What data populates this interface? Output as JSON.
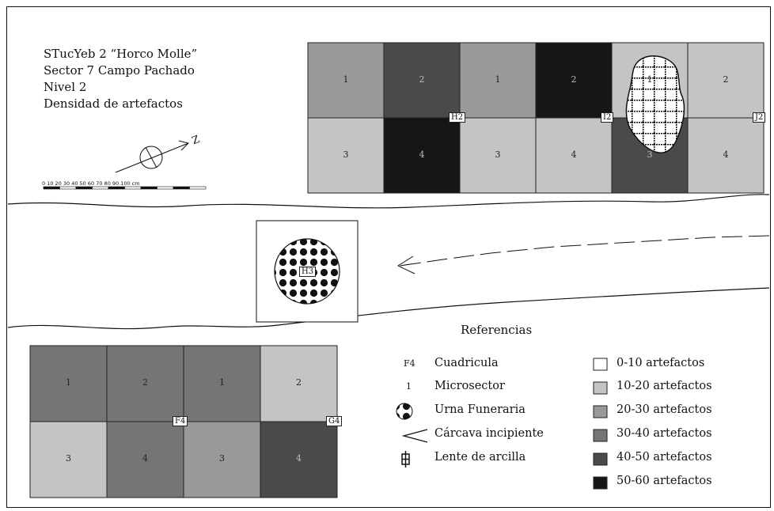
{
  "title_block": {
    "line1": "STucYeb 2 “Horco Molle”",
    "line2": "Sector 7 Campo Pachado",
    "line3": "Nivel 2",
    "line4": "Densidad de artefactos",
    "north_label": "Z",
    "scale_text": "0  10  20  30  40  50  60  70  80  90  100 cm"
  },
  "grid_top": {
    "squares": [
      {
        "label": "H2",
        "microsectors": [
          {
            "n": "1",
            "density": "20-30"
          },
          {
            "n": "2",
            "density": "40-50"
          },
          {
            "n": "3",
            "density": "10-20"
          },
          {
            "n": "4",
            "density": "50-60"
          }
        ]
      },
      {
        "label": "I2",
        "microsectors": [
          {
            "n": "1",
            "density": "20-30"
          },
          {
            "n": "2",
            "density": "50-60"
          },
          {
            "n": "3",
            "density": "10-20"
          },
          {
            "n": "4",
            "density": "10-20"
          }
        ]
      },
      {
        "label": "J2",
        "microsectors": [
          {
            "n": "1",
            "density": "10-20"
          },
          {
            "n": "2",
            "density": "10-20"
          },
          {
            "n": "3",
            "density": "40-50"
          },
          {
            "n": "4",
            "density": "10-20"
          }
        ]
      }
    ]
  },
  "grid_bottom": {
    "squares": [
      {
        "label": "F4",
        "microsectors": [
          {
            "n": "1",
            "density": "30-40"
          },
          {
            "n": "2",
            "density": "30-40"
          },
          {
            "n": "3",
            "density": "10-20"
          },
          {
            "n": "4",
            "density": "30-40"
          }
        ]
      },
      {
        "label": "G4",
        "microsectors": [
          {
            "n": "1",
            "density": "30-40"
          },
          {
            "n": "2",
            "density": "10-20"
          },
          {
            "n": "3",
            "density": "20-30"
          },
          {
            "n": "4",
            "density": "40-50"
          }
        ]
      }
    ]
  },
  "isolated_square": {
    "label": "H3"
  },
  "colors": {
    "0-10": "#ffffff",
    "10-20": "#c4c4c4",
    "20-30": "#999999",
    "30-40": "#757575",
    "40-50": "#4a4a4a",
    "50-60": "#161616"
  },
  "legend": {
    "title": "Referencias",
    "symbols": [
      {
        "icon": "F4",
        "label": "Cuadricula"
      },
      {
        "icon": "1",
        "label": "Microsector"
      },
      {
        "icon": "urn-icon",
        "label": "Urna Funeraria"
      },
      {
        "icon": "arrow-icon",
        "label": "Cárcava incipiente"
      },
      {
        "icon": "clay-lens-icon",
        "label": "Lente de arcilla"
      }
    ],
    "density": [
      {
        "range": "0-10",
        "label": "0-10   artefactos"
      },
      {
        "range": "10-20",
        "label": "10-20 artefactos"
      },
      {
        "range": "20-30",
        "label": "20-30 artefactos"
      },
      {
        "range": "30-40",
        "label": "30-40 artefactos"
      },
      {
        "range": "40-50",
        "label": "40-50 artefactos"
      },
      {
        "range": "50-60",
        "label": "50-60 artefactos"
      }
    ]
  }
}
